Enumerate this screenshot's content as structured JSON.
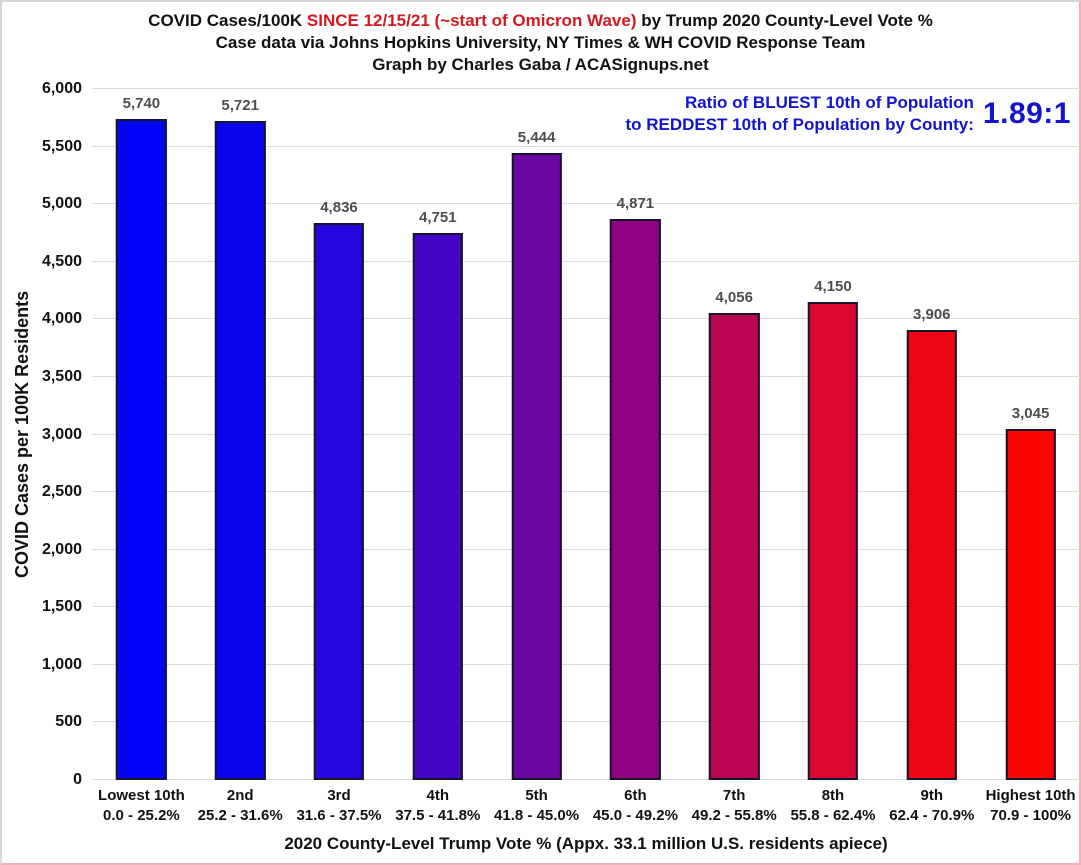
{
  "header": {
    "title_part1": "COVID Cases/100K ",
    "title_highlight": "SINCE 12/15/21 (~start of Omicron Wave)",
    "title_part2": " by Trump 2020 County-Level Vote %",
    "subtitle": "Case data via Johns Hopkins University, NY Times & WH COVID Response Team",
    "credit": "Graph by Charles Gaba / ACASignups.net"
  },
  "annotation": {
    "line1": "Ratio of BLUEST 10th of Population",
    "line2": "to REDDEST 10th of Population by County:",
    "value": "1.89:1"
  },
  "colors": {
    "title_highlight": "#d21a22",
    "annotation_blue": "#1414cc",
    "data_label": "#4d4d4d",
    "gridline": "#dcdcdc",
    "bar_border": "#15152c"
  },
  "chart_data": {
    "type": "bar",
    "title": "COVID Cases/100K SINCE 12/15/21 (~start of Omicron Wave) by Trump 2020 County-Level Vote %",
    "xlabel": "2020 County-Level Trump Vote % (Appx. 33.1 million U.S. residents apiece)",
    "ylabel": "COVID Cases per 100K Residents",
    "ylim": [
      0,
      6000
    ],
    "yticks": [
      0,
      500,
      1000,
      1500,
      2000,
      2500,
      3000,
      3500,
      4000,
      4500,
      5000,
      5500,
      6000
    ],
    "grid": true,
    "legend": false,
    "categories": [
      "Lowest 10th",
      "2nd",
      "3rd",
      "4th",
      "5th",
      "6th",
      "7th",
      "8th",
      "9th",
      "Highest 10th"
    ],
    "category_ranges": [
      "0.0 - 25.2%",
      "25.2 - 31.6%",
      "31.6 - 37.5%",
      "37.5 - 41.8%",
      "41.8 - 45.0%",
      "45.0 - 49.2%",
      "49.2 - 55.8%",
      "55.8 - 62.4%",
      "62.4 - 70.9%",
      "70.9 - 100%"
    ],
    "values": [
      5740,
      5721,
      4836,
      4751,
      5444,
      4871,
      4056,
      4150,
      3906,
      3045
    ],
    "value_labels": [
      "5,740",
      "5,721",
      "4,836",
      "4,751",
      "5,444",
      "4,871",
      "4,056",
      "4,150",
      "3,906",
      "3,045"
    ],
    "bar_colors": [
      "#0404fa",
      "#0d04ee",
      "#2607e0",
      "#4306c6",
      "#6c07a4",
      "#910280",
      "#ba0553",
      "#d90731",
      "#ee0513",
      "#fb0404"
    ]
  }
}
